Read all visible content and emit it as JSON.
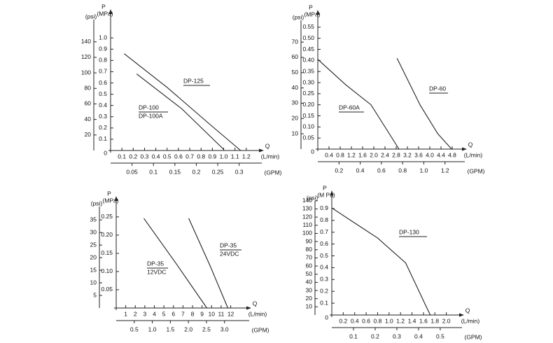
{
  "chart_data": [
    {
      "type": "line",
      "y_title": "P",
      "y_unit": "(MPa)",
      "y2_unit": "(psi)",
      "x_title": "Q",
      "x_unit": "(L/min)",
      "x2_unit": "(GPM)",
      "origin_label": "0",
      "xlim": [
        0,
        1.3
      ],
      "xticks": [
        0.1,
        0.2,
        0.3,
        0.4,
        0.5,
        0.6,
        0.7,
        0.8,
        0.9,
        {
          "value": 1,
          "label": "1.0"
        },
        1.1,
        1.2
      ],
      "x2lim": [
        0,
        0.343
      ],
      "x2ticks": [
        0.05,
        0.1,
        0.15,
        0.2,
        0.25,
        0.3
      ],
      "ylim": [
        0,
        1.2
      ],
      "yticks": [
        0.1,
        0.2,
        0.3,
        0.4,
        0.5,
        0.6,
        0.7,
        0.8,
        0.9,
        {
          "value": 1,
          "label": "1.0"
        }
      ],
      "y2lim": [
        0,
        174
      ],
      "y2ticks": [
        20,
        40,
        60,
        80,
        100,
        120,
        140
      ],
      "series": [
        {
          "name": "DP-125",
          "color": "#222222",
          "x": [
            0.12,
            0.5,
            0.88,
            1.15
          ],
          "values": [
            0.86,
            0.56,
            0.23,
            0
          ]
        },
        {
          "name": "DP-100",
          "subname": "DP-100A",
          "color": "#222222",
          "x": [
            0.23,
            0.63,
            1.0
          ],
          "values": [
            0.68,
            0.37,
            0.01
          ]
        }
      ]
    },
    {
      "type": "line",
      "y_title": "P",
      "y_unit": "(MPa)",
      "y2_unit": "(psi)",
      "x_title": "Q",
      "x_unit": "(L/min)",
      "x2_unit": "(GPM)",
      "origin_label": "0",
      "xlim": [
        0,
        5.1
      ],
      "xticks": [
        0.4,
        0.8,
        1.2,
        1.6,
        {
          "value": 2,
          "label": "2.0"
        },
        2.4,
        2.8,
        3.2,
        3.6,
        {
          "value": 4,
          "label": "4.0"
        },
        4.4,
        4.8
      ],
      "x2lim": [
        0,
        1.347
      ],
      "x2ticks": [
        0.2,
        0.4,
        0.6,
        0.8,
        {
          "value": 1,
          "label": "1.0"
        },
        1.2
      ],
      "ylim": [
        0,
        0.6
      ],
      "yticks": [
        0.05,
        {
          "value": 0.1,
          "label": "0.10"
        },
        0.15,
        {
          "value": 0.2,
          "label": "0.20"
        },
        0.25,
        {
          "value": 0.3,
          "label": "0.30"
        },
        0.35,
        {
          "value": 0.4,
          "label": "0.40"
        },
        0.45,
        {
          "value": 0.5,
          "label": "0.50"
        },
        0.55
      ],
      "y2lim": [
        0,
        87
      ],
      "y2ticks": [
        10,
        20,
        30,
        40,
        50,
        60,
        70
      ],
      "series": [
        {
          "name": "DP-60A",
          "color": "#222222",
          "x": [
            0,
            1.0,
            1.9,
            2.9
          ],
          "values": [
            0.405,
            0.29,
            0.2,
            0
          ]
        },
        {
          "name": "DP-60",
          "color": "#222222",
          "x": [
            2.83,
            3.65,
            4.28,
            4.78
          ],
          "values": [
            0.41,
            0.2,
            0.07,
            0
          ]
        }
      ]
    },
    {
      "type": "line",
      "y_title": "P",
      "y_unit": "(MPa)",
      "y2_unit": "(psi)",
      "x_title": "Q",
      "x_unit": "(L/min)",
      "x2_unit": "(GPM)",
      "xlim": [
        0,
        13.5
      ],
      "xticks": [
        1,
        2,
        3,
        4,
        5,
        6,
        7,
        8,
        9,
        10,
        11,
        12
      ],
      "x2lim": [
        0,
        3.567
      ],
      "x2ticks": [
        0.5,
        {
          "value": 1,
          "label": "1.0"
        },
        1.5,
        {
          "value": 2,
          "label": "2.0"
        },
        2.5,
        {
          "value": 3,
          "label": "3.0"
        }
      ],
      "ylim": [
        0,
        0.29
      ],
      "yticks": [
        0.05,
        {
          "value": 0.1,
          "label": "0.10"
        },
        0.15,
        {
          "value": 0.2,
          "label": "0.20"
        },
        0.25
      ],
      "y2lim": [
        0,
        42
      ],
      "y2ticks": [
        5,
        10,
        15,
        20,
        25,
        30,
        35
      ],
      "series": [
        {
          "name": "DP-35",
          "subname": "12VDC",
          "color": "#222222",
          "x": [
            2.9,
            6.2,
            9.5
          ],
          "values": [
            0.246,
            0.125,
            0
          ]
        },
        {
          "name": "DP-35",
          "subname": "24VDC",
          "color": "#222222",
          "x": [
            7.6,
            9.85,
            11.7
          ],
          "values": [
            0.246,
            0.115,
            0
          ]
        }
      ]
    },
    {
      "type": "line",
      "y_title": "P",
      "y_unit": "(M Pa)",
      "y2_unit": "(psi)",
      "x_title": "Q",
      "x_unit": "(L/min)",
      "x2_unit": "(GPM)",
      "origin_label": "0",
      "xlim": [
        0,
        2.2
      ],
      "xticks": [
        0.2,
        0.4,
        0.6,
        0.8,
        {
          "value": 1,
          "label": "1.0"
        },
        1.2,
        1.4,
        1.6,
        1.8,
        {
          "value": 2,
          "label": "2.0"
        }
      ],
      "x2lim": [
        0,
        0.581
      ],
      "x2ticks": [
        0.1,
        0.2,
        0.3,
        0.4,
        0.5
      ],
      "ylim": [
        0,
        1.0
      ],
      "yticks": [
        0.1,
        0.2,
        0.3,
        0.4,
        0.5,
        0.6,
        0.7,
        0.8,
        0.9
      ],
      "y2lim": [
        0,
        145
      ],
      "y2ticks": [
        10,
        20,
        30,
        40,
        50,
        60,
        70,
        80,
        90,
        100,
        110,
        120,
        130,
        140
      ],
      "series": [
        {
          "name": "DP-130",
          "color": "#222222",
          "x": [
            0,
            0.8,
            1.29,
            1.66,
            1.72
          ],
          "values": [
            0.905,
            0.65,
            0.44,
            0.06,
            0
          ]
        }
      ]
    }
  ]
}
